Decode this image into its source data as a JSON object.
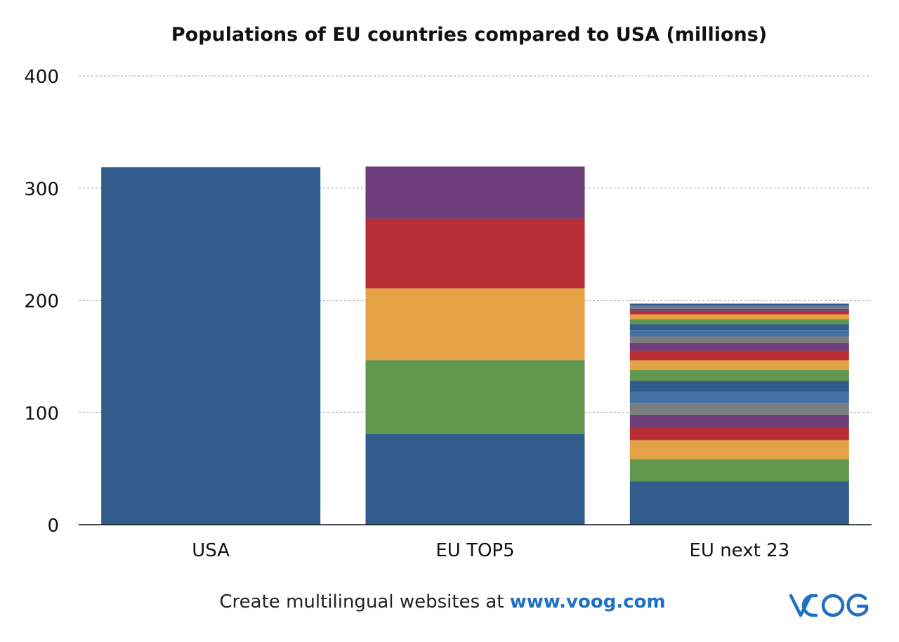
{
  "chart_data": {
    "type": "bar",
    "stacked": true,
    "title": "Populations of EU countries compared to USA (millions)",
    "xlabel": "",
    "ylabel": "",
    "ylim": [
      0,
      400
    ],
    "yticks": [
      0,
      100,
      200,
      300,
      400
    ],
    "grid": true,
    "legend": "none",
    "categories": [
      "USA",
      "EU TOP5",
      "EU next 23"
    ],
    "stacks": [
      {
        "category": "USA",
        "values": [
          318.5
        ]
      },
      {
        "category": "EU TOP5",
        "values": [
          80.8,
          65.8,
          64.1,
          62.0,
          46.5
        ]
      },
      {
        "category": "EU next 23",
        "values": [
          38.5,
          19.9,
          17.0,
          11.3,
          11.0,
          10.5,
          10.4,
          9.7,
          9.6,
          8.6,
          8.5,
          7.2,
          5.6,
          5.5,
          5.4,
          4.6,
          4.2,
          2.9,
          2.0,
          2.0,
          1.3,
          0.9,
          0.6
        ]
      }
    ],
    "palette": [
      "#315b8b",
      "#60964d",
      "#e4a146",
      "#b92e34",
      "#6d3e79",
      "#7b7e7f",
      "#4470a3"
    ]
  },
  "footer": {
    "text": "Create multilingual websites at ",
    "link": "www.voog.com"
  },
  "logo": {
    "text": "VOOG",
    "color": "#1f6fc2"
  }
}
